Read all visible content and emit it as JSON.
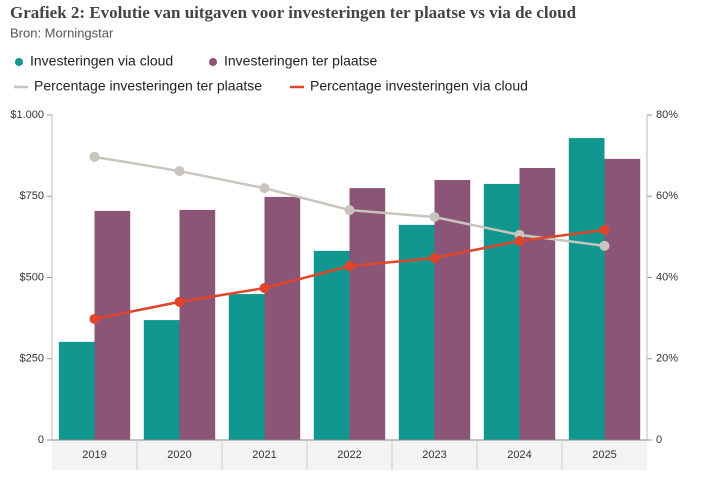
{
  "chart_data": {
    "type": "bar",
    "title": "Grafiek 2: Evolutie van uitgaven voor investeringen ter plaatse vs via de cloud",
    "subtitle": "Bron: Morningstar",
    "categories": [
      "2019",
      "2020",
      "2021",
      "2022",
      "2023",
      "2024",
      "2025"
    ],
    "series": [
      {
        "name": "Investeringen via cloud",
        "type": "bar",
        "color": "#11978f",
        "values": [
          302,
          369,
          449,
          582,
          662,
          788,
          929
        ]
      },
      {
        "name": "Investeringen ter plaatse",
        "type": "bar",
        "color": "#8a5577",
        "values": [
          705,
          708,
          748,
          775,
          800,
          837,
          865
        ]
      },
      {
        "name": "Percentage investeringen ter plaatse",
        "type": "line",
        "axis": "y2",
        "color": "#c9c5bd",
        "values": [
          69.7,
          66.2,
          62,
          56.6,
          54.9,
          50.5,
          47.8
        ]
      },
      {
        "name": "Percentage investeringen via cloud",
        "type": "line",
        "axis": "y2",
        "color": "#e0452c",
        "values": [
          29.8,
          34,
          37.4,
          42.8,
          44.8,
          49,
          51.7
        ]
      }
    ],
    "ylim": [
      0,
      1000
    ],
    "yticks": [
      0,
      {
        "value": 250,
        "label": "$250"
      },
      {
        "value": 500,
        "label": "$500"
      },
      {
        "value": 750,
        "label": "$750"
      },
      {
        "value": 1000,
        "label": "$1.000"
      }
    ],
    "y2lim": [
      0,
      80
    ],
    "y2ticks": [
      0,
      {
        "value": 20,
        "label": "20%"
      },
      {
        "value": 40,
        "label": "40%"
      },
      {
        "value": 60,
        "label": "60%"
      },
      {
        "value": 80,
        "label": "80%"
      }
    ]
  }
}
